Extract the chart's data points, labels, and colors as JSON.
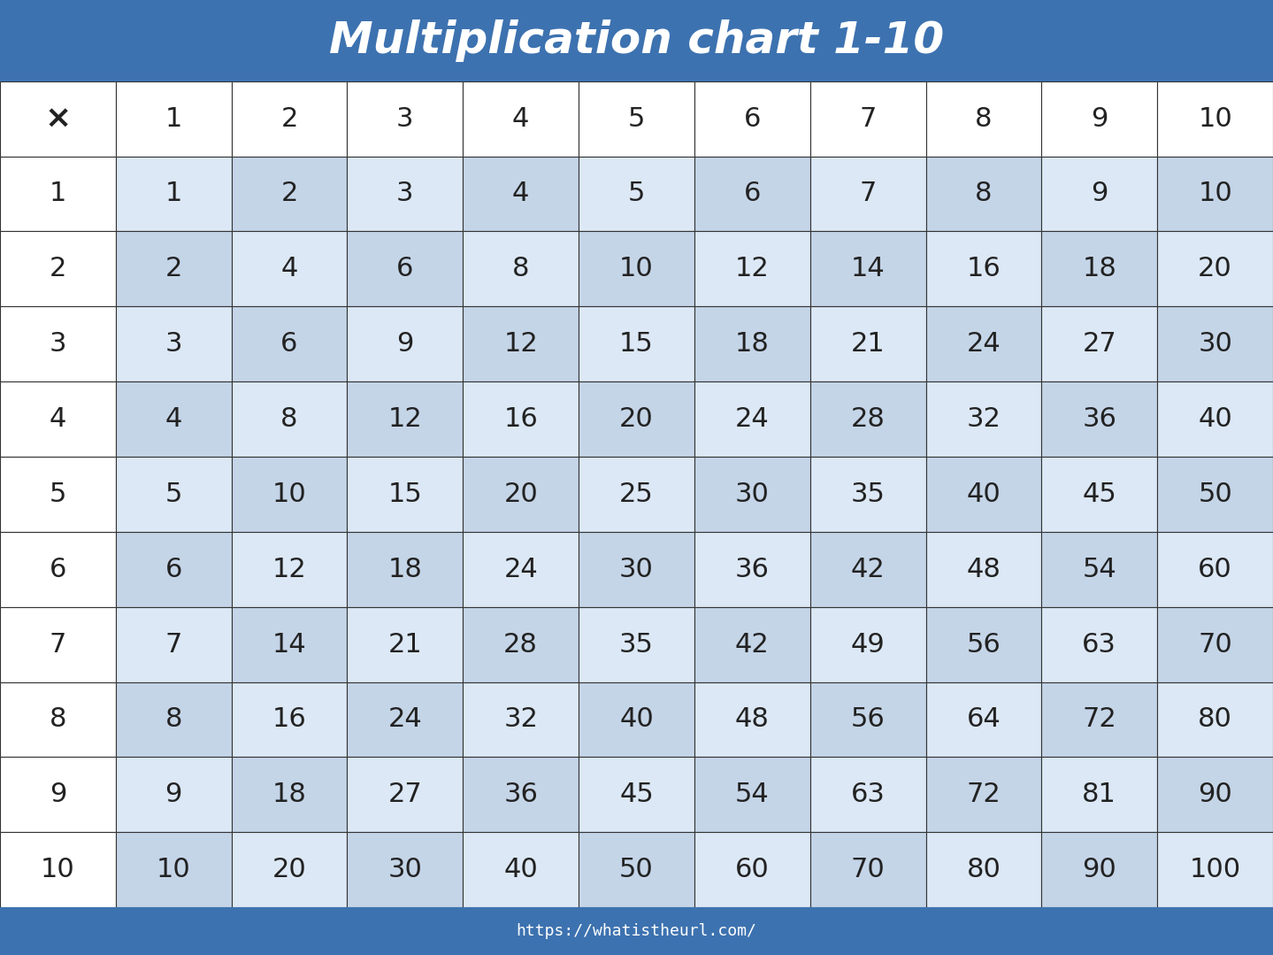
{
  "title": "Multiplication chart 1-10",
  "title_bg_color": "#3d72b0",
  "title_text_color": "#ffffff",
  "footer_text": "https://whatistheurl.com/",
  "footer_bg_color": "#3d72b0",
  "footer_text_color": "#ffffff",
  "header_row": [
    "×",
    "1",
    "2",
    "3",
    "4",
    "5",
    "6",
    "7",
    "8",
    "9",
    "10"
  ],
  "row_labels": [
    "1",
    "2",
    "3",
    "4",
    "5",
    "6",
    "7",
    "8",
    "9",
    "10"
  ],
  "cell_bg_light": "#c5d5e8",
  "cell_bg_lighter": "#dce8f5",
  "cell_bg_white": "#ffffff",
  "grid_color": "#333333",
  "text_color": "#222222",
  "n_rows": 10,
  "n_cols": 10
}
